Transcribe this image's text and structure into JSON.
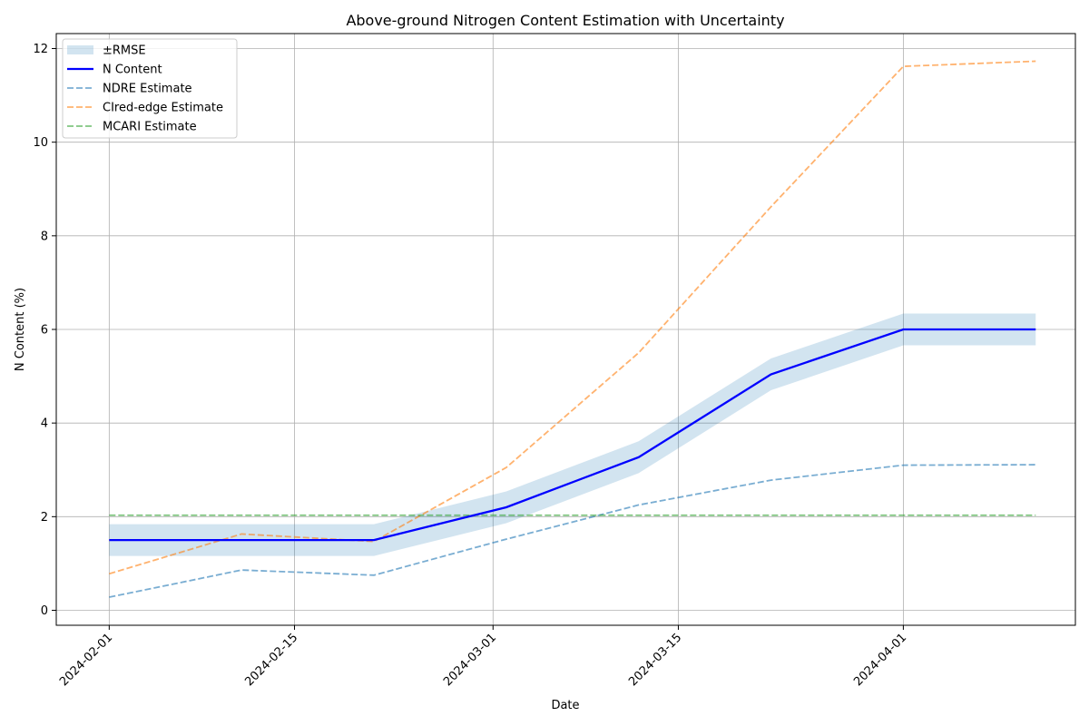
{
  "chart_data": {
    "type": "line",
    "title": "Above-ground Nitrogen Content Estimation with Uncertainty",
    "xlabel": "Date",
    "ylabel": "N Content (%)",
    "x_ticks": [
      "2024-02-01",
      "2024-02-15",
      "2024-03-01",
      "2024-03-15",
      "2024-04-01"
    ],
    "y_ticks": [
      "0",
      "2",
      "4",
      "6",
      "8",
      "10",
      "12"
    ],
    "xlim": [
      "2024-01-28",
      "2024-04-14"
    ],
    "ylim": [
      -0.32,
      12.32
    ],
    "grid": true,
    "legend_position": "top-left",
    "x": [
      "2024-02-01",
      "2024-02-11",
      "2024-02-21",
      "2024-03-02",
      "2024-03-12",
      "2024-03-22",
      "2024-04-01",
      "2024-04-11"
    ],
    "rmse": 0.34,
    "series": [
      {
        "name": "N Content",
        "color": "#0000ff",
        "style": "solid",
        "values": [
          1.5,
          1.5,
          1.5,
          2.2,
          3.27,
          5.04,
          6.0,
          6.0
        ]
      },
      {
        "name": "NDRE Estimate",
        "color": "#1f77b4",
        "style": "dashed",
        "values": [
          0.28,
          0.86,
          0.75,
          1.52,
          2.25,
          2.78,
          3.1,
          3.11
        ]
      },
      {
        "name": "CIred-edge Estimate",
        "color": "#ff7f0e",
        "style": "dashed",
        "values": [
          0.78,
          1.63,
          1.47,
          3.05,
          5.5,
          8.62,
          11.62,
          11.73
        ]
      },
      {
        "name": "MCARI Estimate",
        "color": "#2ca02c",
        "style": "dashed",
        "values": [
          2.03,
          2.03,
          2.03,
          2.03,
          2.03,
          2.03,
          2.03,
          2.03
        ]
      }
    ],
    "band": {
      "name": "±RMSE",
      "color": "#1f77b4"
    }
  }
}
